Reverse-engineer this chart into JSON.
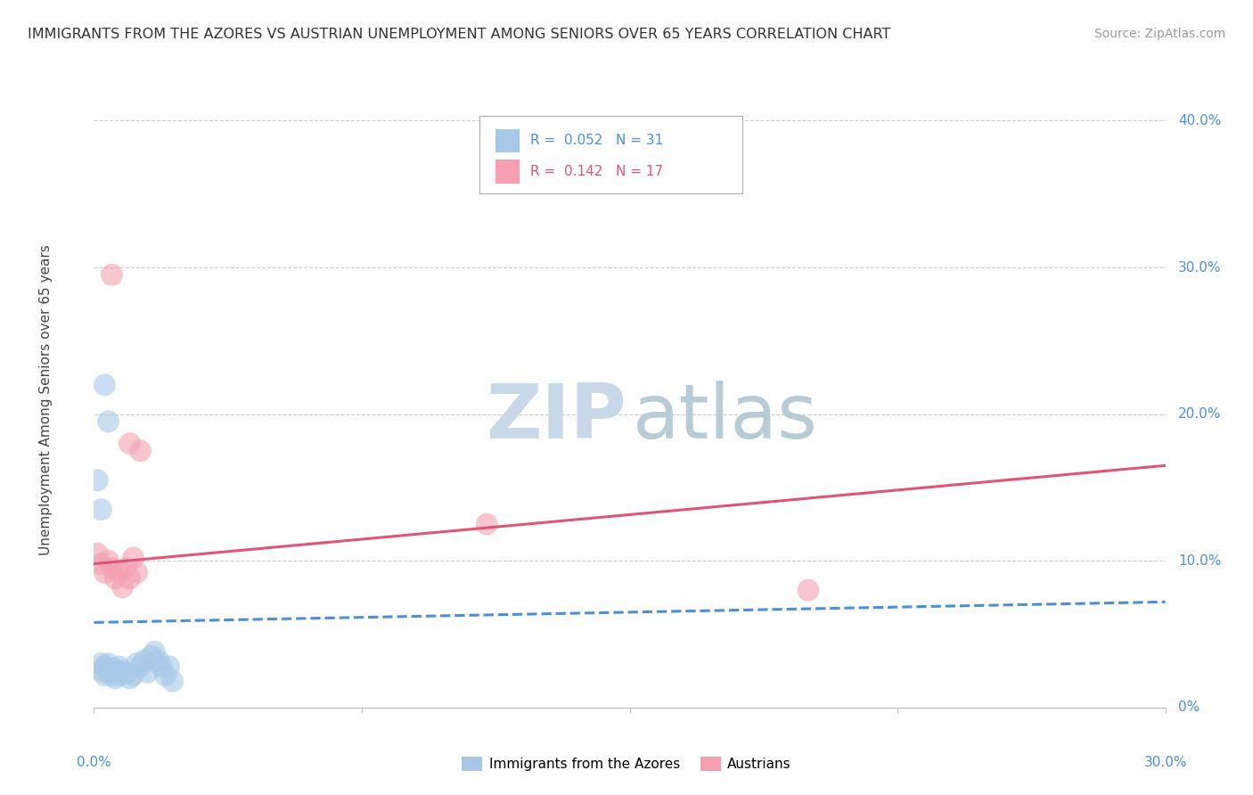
{
  "title": "IMMIGRANTS FROM THE AZORES VS AUSTRIAN UNEMPLOYMENT AMONG SENIORS OVER 65 YEARS CORRELATION CHART",
  "source": "Source: ZipAtlas.com",
  "ylabel": "Unemployment Among Seniors over 65 years",
  "color_blue": "#a8c8e8",
  "color_pink": "#f4a0b0",
  "trendline_blue_color": "#4a90d9",
  "trendline_pink_color": "#e05575",
  "grid_color": "#cccccc",
  "axis_color": "#4a90d9",
  "xlim": [
    0.0,
    0.3
  ],
  "ylim": [
    0.0,
    0.42
  ],
  "xtick_positions": [
    0.0,
    0.075,
    0.15,
    0.225,
    0.3
  ],
  "ytick_vals": [
    0.0,
    0.1,
    0.2,
    0.3,
    0.4
  ],
  "right_tick_labels": [
    "0%",
    "10.0%",
    "20.0%",
    "30.0%",
    "40.0%"
  ],
  "blue_points": [
    [
      0.002,
      0.03
    ],
    [
      0.002,
      0.025
    ],
    [
      0.003,
      0.028
    ],
    [
      0.003,
      0.022
    ],
    [
      0.004,
      0.03
    ],
    [
      0.004,
      0.025
    ],
    [
      0.005,
      0.027
    ],
    [
      0.005,
      0.022
    ],
    [
      0.006,
      0.026
    ],
    [
      0.006,
      0.02
    ],
    [
      0.007,
      0.028
    ],
    [
      0.007,
      0.022
    ],
    [
      0.008,
      0.025
    ],
    [
      0.009,
      0.023
    ],
    [
      0.01,
      0.02
    ],
    [
      0.011,
      0.022
    ],
    [
      0.012,
      0.03
    ],
    [
      0.013,
      0.028
    ],
    [
      0.014,
      0.032
    ],
    [
      0.015,
      0.024
    ],
    [
      0.016,
      0.035
    ],
    [
      0.017,
      0.038
    ],
    [
      0.018,
      0.032
    ],
    [
      0.019,
      0.028
    ],
    [
      0.02,
      0.022
    ],
    [
      0.021,
      0.028
    ],
    [
      0.022,
      0.018
    ],
    [
      0.003,
      0.22
    ],
    [
      0.004,
      0.195
    ],
    [
      0.001,
      0.155
    ],
    [
      0.002,
      0.135
    ]
  ],
  "pink_points": [
    [
      0.001,
      0.105
    ],
    [
      0.002,
      0.098
    ],
    [
      0.003,
      0.092
    ],
    [
      0.004,
      0.1
    ],
    [
      0.005,
      0.095
    ],
    [
      0.006,
      0.088
    ],
    [
      0.007,
      0.092
    ],
    [
      0.008,
      0.082
    ],
    [
      0.009,
      0.095
    ],
    [
      0.01,
      0.088
    ],
    [
      0.011,
      0.102
    ],
    [
      0.012,
      0.092
    ],
    [
      0.013,
      0.175
    ],
    [
      0.005,
      0.295
    ],
    [
      0.01,
      0.18
    ],
    [
      0.11,
      0.125
    ],
    [
      0.2,
      0.08
    ]
  ],
  "blue_trend_x": [
    0.0,
    0.3
  ],
  "blue_trend_y": [
    0.058,
    0.072
  ],
  "pink_trend_x": [
    0.0,
    0.3
  ],
  "pink_trend_y": [
    0.098,
    0.165
  ],
  "watermark_zip_color": "#c8d8e8",
  "watermark_atlas_color": "#b8ccd8"
}
